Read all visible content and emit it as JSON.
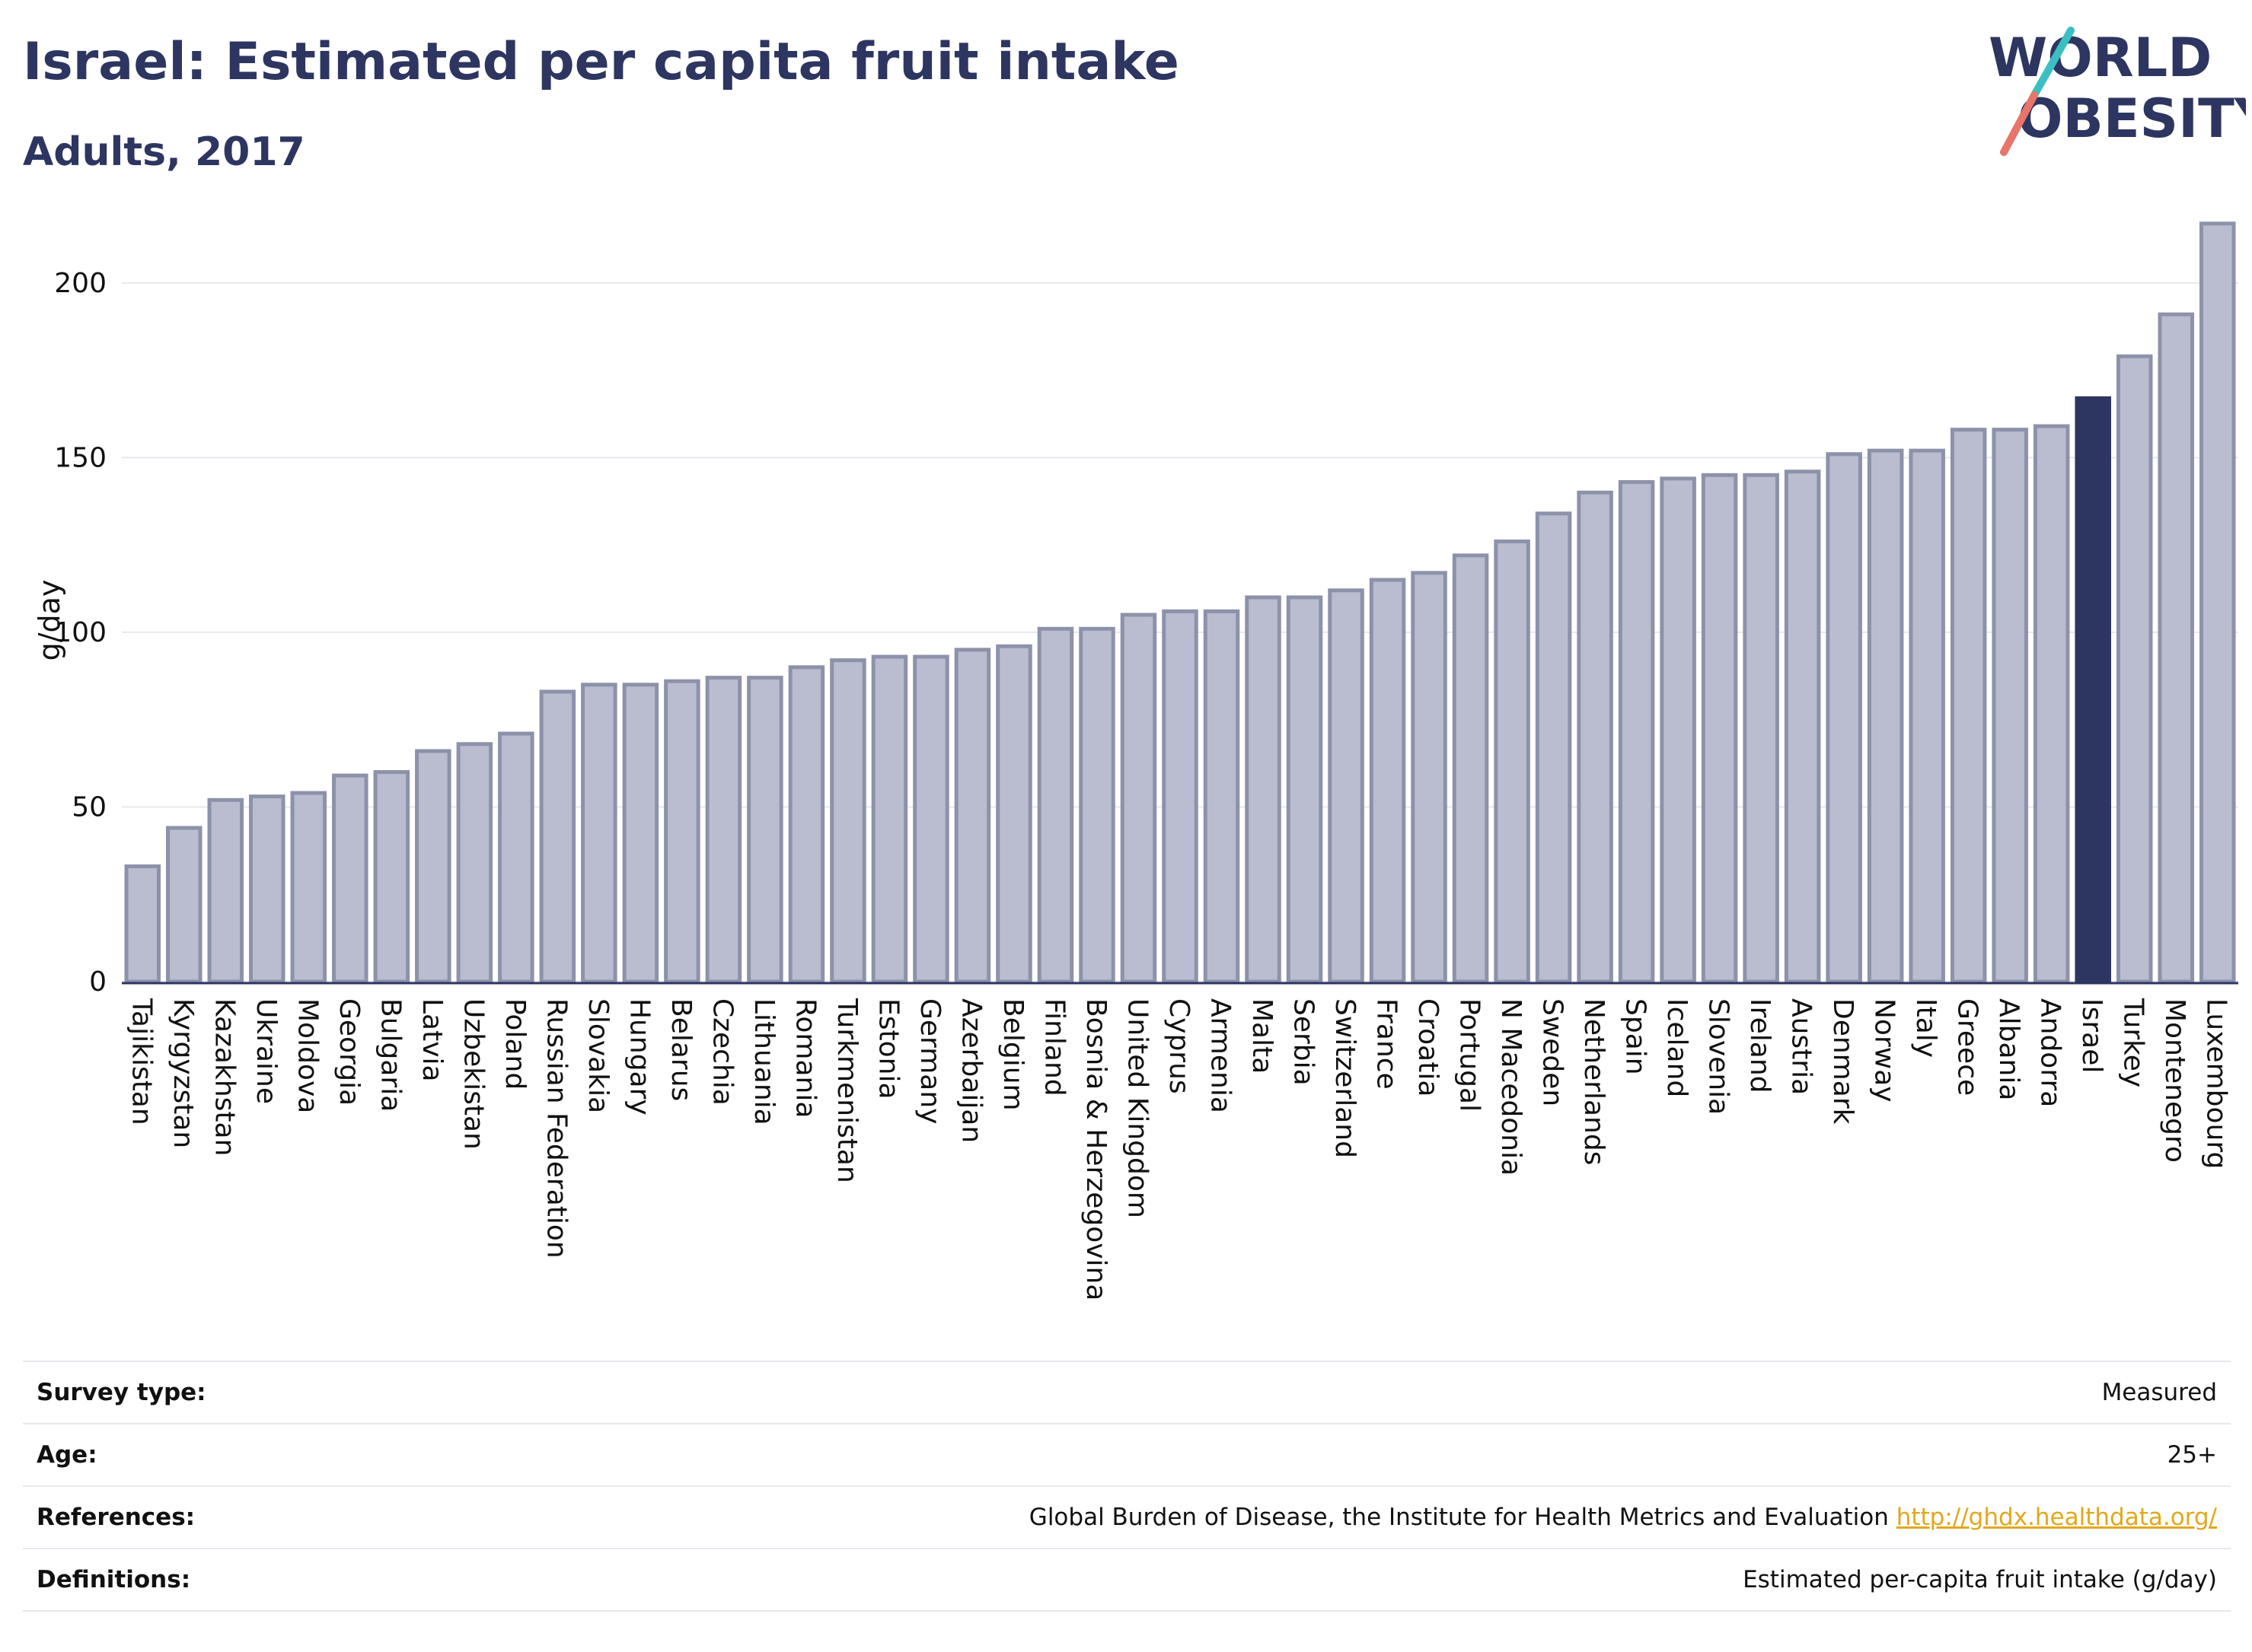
{
  "header": {
    "title": "Israel: Estimated per capita fruit intake",
    "subtitle": "Adults, 2017"
  },
  "logo": {
    "line1": "WORLD",
    "line2": "OBESITY",
    "slash_colors": [
      "#3bbfc2",
      "#e8746a"
    ]
  },
  "colors": {
    "bar": "#b9bdcf",
    "bar_border": "#8d92ab",
    "highlight": "#2d3561",
    "grid": "#e6e8ee"
  },
  "chart_data": {
    "type": "bar",
    "title": "Israel: Estimated per capita fruit intake",
    "subtitle": "Adults, 2017",
    "ylabel": "g/day",
    "xlabel": "",
    "ylim": [
      0,
      220
    ],
    "yticks": [
      0,
      50,
      100,
      150,
      200
    ],
    "grid": true,
    "highlight": "Israel",
    "categories": [
      "Tajikistan",
      "Kyrgyzstan",
      "Kazakhstan",
      "Ukraine",
      "Moldova",
      "Georgia",
      "Bulgaria",
      "Latvia",
      "Uzbekistan",
      "Poland",
      "Russian Federation",
      "Slovakia",
      "Hungary",
      "Belarus",
      "Czechia",
      "Lithuania",
      "Romania",
      "Turkmenistan",
      "Estonia",
      "Germany",
      "Azerbaijan",
      "Belgium",
      "Finland",
      "Bosnia & Herzegovina",
      "United Kingdom",
      "Cyprus",
      "Armenia",
      "Malta",
      "Serbia",
      "Switzerland",
      "France",
      "Croatia",
      "Portugal",
      "N Macedonia",
      "Sweden",
      "Netherlands",
      "Spain",
      "Iceland",
      "Slovenia",
      "Ireland",
      "Austria",
      "Denmark",
      "Norway",
      "Italy",
      "Greece",
      "Albania",
      "Andorra",
      "Israel",
      "Turkey",
      "Montenegro",
      "Luxembourg"
    ],
    "values": [
      33,
      44,
      52,
      53,
      54,
      59,
      60,
      66,
      68,
      71,
      83,
      85,
      85,
      86,
      87,
      87,
      90,
      92,
      93,
      93,
      95,
      96,
      101,
      101,
      105,
      106,
      106,
      110,
      110,
      112,
      115,
      117,
      122,
      126,
      134,
      140,
      143,
      144,
      145,
      145,
      146,
      151,
      152,
      152,
      158,
      158,
      159,
      167,
      179,
      191,
      217
    ]
  },
  "info": [
    {
      "label": "Survey type:",
      "value": "Measured"
    },
    {
      "label": "Age:",
      "value": "25+"
    },
    {
      "label": "References:",
      "value": "Global Burden of Disease, the Institute for Health Metrics and Evaluation",
      "link": "http://ghdx.healthdata.org/"
    },
    {
      "label": "Definitions:",
      "value": "Estimated per-capita fruit intake (g/day)"
    }
  ]
}
